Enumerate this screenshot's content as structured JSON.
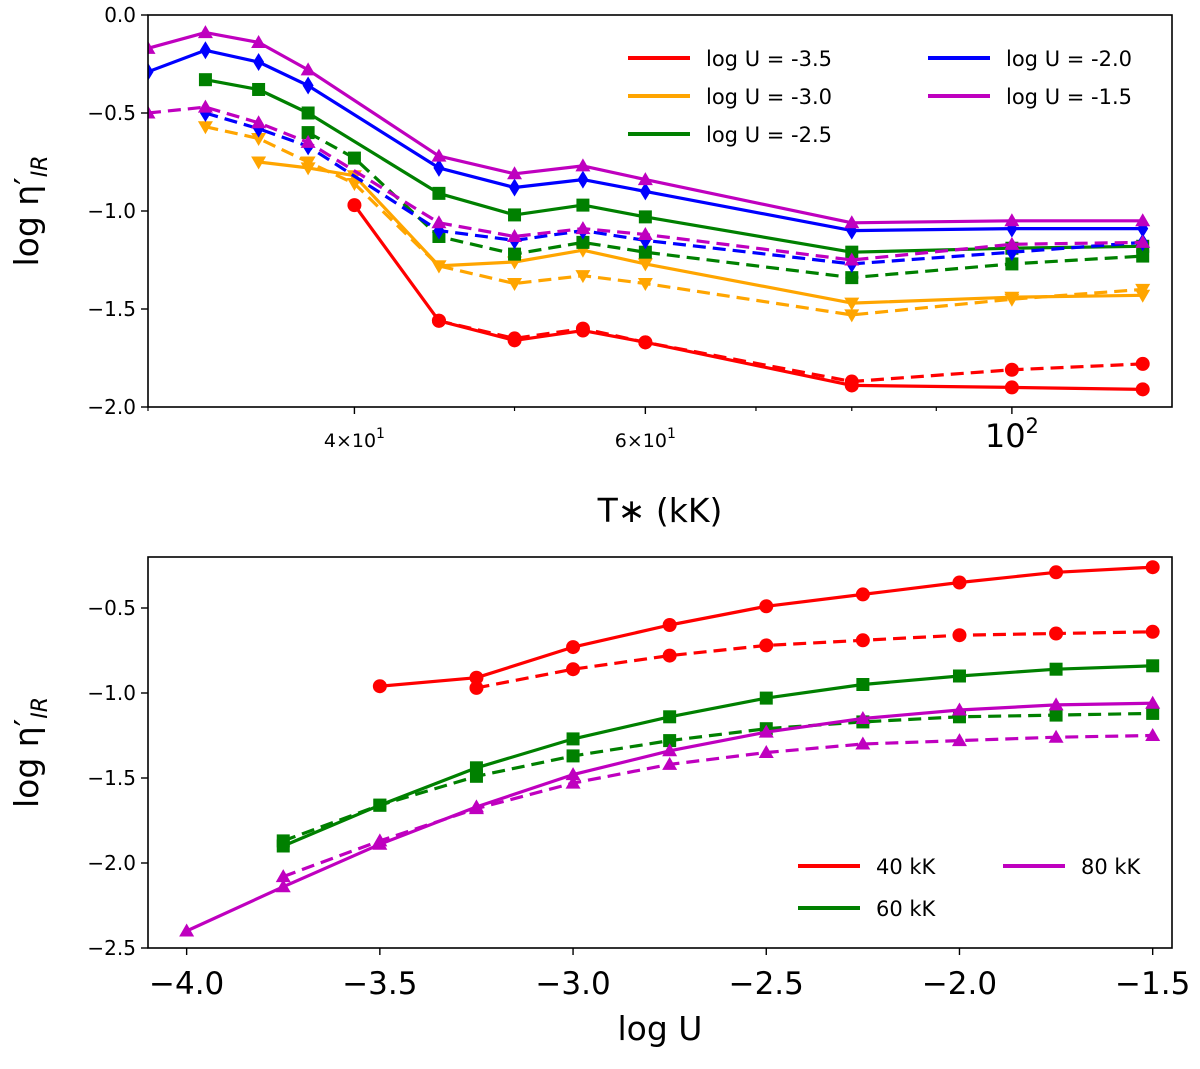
{
  "chart_data": [
    {
      "type": "line",
      "xscale": "log",
      "xlabel": "T∗ (kK)",
      "ylabel": "log η′IR",
      "ylabel_main": "log η′",
      "ylabel_sub": "IR",
      "xlim": [
        30,
        125
      ],
      "ylim": [
        -2.0,
        0.0
      ],
      "xticks": [
        {
          "value": 40,
          "label": "4×10",
          "exp": "1"
        },
        {
          "value": 60,
          "label": "6×10",
          "exp": "1"
        },
        {
          "value": 100,
          "label": "10",
          "exp": "2"
        }
      ],
      "yticks": [
        {
          "value": 0.0,
          "label": "0.0"
        },
        {
          "value": -0.5,
          "label": "−0.5"
        },
        {
          "value": -1.0,
          "label": "−1.0"
        },
        {
          "value": -1.5,
          "label": "−1.5"
        },
        {
          "value": -2.0,
          "label": "−2.0"
        }
      ],
      "legend": {
        "placement": "top-right",
        "entries": [
          {
            "label": "log U = -3.5",
            "color": "#ff0000"
          },
          {
            "label": "log U = -3.0",
            "color": "#ffa500"
          },
          {
            "label": "log U = -2.5",
            "color": "#008000"
          },
          {
            "label": "log U = -2.0",
            "color": "#0000ff"
          },
          {
            "label": "log U = -1.5",
            "color": "#bf00bf"
          }
        ]
      },
      "series": [
        {
          "name": "log U = -3.5 solid",
          "color": "#ff0000",
          "marker": "circle",
          "dashed": false,
          "x": [
            40,
            45,
            50,
            55,
            60,
            80,
            100,
            120
          ],
          "y": [
            -0.97,
            -1.56,
            -1.66,
            -1.61,
            -1.67,
            -1.89,
            -1.9,
            -1.91
          ]
        },
        {
          "name": "log U = -3.5 dashed",
          "color": "#ff0000",
          "marker": "circle",
          "dashed": true,
          "x": [
            45,
            50,
            55,
            60,
            80,
            100,
            120
          ],
          "y": [
            -1.56,
            -1.65,
            -1.6,
            -1.67,
            -1.87,
            -1.81,
            -1.78
          ]
        },
        {
          "name": "log U = -3.0 solid",
          "color": "#ffa500",
          "marker": "triangle-down",
          "dashed": false,
          "x": [
            35,
            37.5,
            40,
            45,
            50,
            55,
            60,
            80,
            100,
            120
          ],
          "y": [
            -0.75,
            -0.78,
            -0.82,
            -1.28,
            -1.26,
            -1.2,
            -1.27,
            -1.47,
            -1.44,
            -1.43
          ]
        },
        {
          "name": "log U = -3.0 dashed",
          "color": "#ffa500",
          "marker": "triangle-down",
          "dashed": true,
          "x": [
            32.5,
            35,
            37.5,
            40,
            45,
            50,
            55,
            60,
            80,
            100,
            120
          ],
          "y": [
            -0.57,
            -0.63,
            -0.75,
            -0.86,
            -1.28,
            -1.37,
            -1.33,
            -1.37,
            -1.53,
            -1.45,
            -1.4
          ]
        },
        {
          "name": "log U = -2.5 solid",
          "color": "#008000",
          "marker": "square",
          "dashed": false,
          "x": [
            32.5,
            35,
            37.5,
            45,
            50,
            55,
            60,
            80,
            100,
            120
          ],
          "y": [
            -0.33,
            -0.38,
            -0.5,
            -0.91,
            -1.02,
            -0.97,
            -1.03,
            -1.21,
            -1.19,
            -1.18
          ]
        },
        {
          "name": "log U = -2.5 dashed",
          "color": "#008000",
          "marker": "square",
          "dashed": true,
          "x": [
            37.5,
            40,
            45,
            50,
            55,
            60,
            80,
            100,
            120
          ],
          "y": [
            -0.6,
            -0.73,
            -1.13,
            -1.22,
            -1.16,
            -1.21,
            -1.34,
            -1.27,
            -1.23
          ]
        },
        {
          "name": "log U = -2.0 solid",
          "color": "#0000ff",
          "marker": "diamond",
          "dashed": false,
          "x": [
            30,
            32.5,
            35,
            37.5,
            45,
            50,
            55,
            60,
            80,
            100,
            120
          ],
          "y": [
            -0.29,
            -0.18,
            -0.24,
            -0.36,
            -0.78,
            -0.88,
            -0.84,
            -0.9,
            -1.1,
            -1.09,
            -1.09
          ]
        },
        {
          "name": "log U = -2.0 dashed",
          "color": "#0000ff",
          "marker": "diamond",
          "dashed": true,
          "x": [
            32.5,
            35,
            37.5,
            45,
            50,
            55,
            60,
            80,
            100,
            120
          ],
          "y": [
            -0.5,
            -0.58,
            -0.67,
            -1.1,
            -1.15,
            -1.1,
            -1.15,
            -1.27,
            -1.21,
            -1.16
          ]
        },
        {
          "name": "log U = -1.5 solid",
          "color": "#bf00bf",
          "marker": "triangle-up",
          "dashed": false,
          "x": [
            30,
            32.5,
            35,
            37.5,
            45,
            50,
            55,
            60,
            80,
            100,
            120
          ],
          "y": [
            -0.17,
            -0.09,
            -0.14,
            -0.28,
            -0.72,
            -0.81,
            -0.77,
            -0.84,
            -1.06,
            -1.05,
            -1.05
          ]
        },
        {
          "name": "log U = -1.5 dashed",
          "color": "#bf00bf",
          "marker": "triangle-up",
          "dashed": true,
          "x": [
            30,
            32.5,
            35,
            37.5,
            45,
            50,
            55,
            60,
            80,
            100,
            120
          ],
          "y": [
            -0.5,
            -0.47,
            -0.55,
            -0.65,
            -1.06,
            -1.13,
            -1.09,
            -1.12,
            -1.25,
            -1.17,
            -1.16
          ]
        }
      ]
    },
    {
      "type": "line",
      "xscale": "linear",
      "xlabel": "log U",
      "ylabel": "log η′IR",
      "ylabel_main": "log η′",
      "ylabel_sub": "IR",
      "xlim": [
        -4.1,
        -1.45
      ],
      "ylim": [
        -2.5,
        -0.2
      ],
      "xticks": [
        {
          "value": -4.0,
          "label": "−4.0"
        },
        {
          "value": -3.5,
          "label": "−3.5"
        },
        {
          "value": -3.0,
          "label": "−3.0"
        },
        {
          "value": -2.5,
          "label": "−2.5"
        },
        {
          "value": -2.0,
          "label": "−2.0"
        },
        {
          "value": -1.5,
          "label": "−1.5"
        }
      ],
      "yticks": [
        {
          "value": -0.5,
          "label": "−0.5"
        },
        {
          "value": -1.0,
          "label": "−1.0"
        },
        {
          "value": -1.5,
          "label": "−1.5"
        },
        {
          "value": -2.0,
          "label": "−2.0"
        },
        {
          "value": -2.5,
          "label": "−2.5"
        }
      ],
      "legend": {
        "placement": "lower-right",
        "entries": [
          {
            "label": "40 kK",
            "color": "#ff0000"
          },
          {
            "label": "60 kK",
            "color": "#008000"
          },
          {
            "label": "80 kK",
            "color": "#bf00bf"
          }
        ]
      },
      "series": [
        {
          "name": "40 kK solid",
          "color": "#ff0000",
          "marker": "circle",
          "dashed": false,
          "x": [
            -3.5,
            -3.25,
            -3.0,
            -2.75,
            -2.5,
            -2.25,
            -2.0,
            -1.75,
            -1.5
          ],
          "y": [
            -0.96,
            -0.91,
            -0.73,
            -0.6,
            -0.49,
            -0.42,
            -0.35,
            -0.29,
            -0.26
          ]
        },
        {
          "name": "40 kK dashed",
          "color": "#ff0000",
          "marker": "circle",
          "dashed": true,
          "x": [
            -3.25,
            -3.0,
            -2.75,
            -2.5,
            -2.25,
            -2.0,
            -1.75,
            -1.5
          ],
          "y": [
            -0.97,
            -0.86,
            -0.78,
            -0.72,
            -0.69,
            -0.66,
            -0.65,
            -0.64
          ]
        },
        {
          "name": "60 kK solid",
          "color": "#008000",
          "marker": "square",
          "dashed": false,
          "x": [
            -3.75,
            -3.5,
            -3.25,
            -3.0,
            -2.75,
            -2.5,
            -2.25,
            -2.0,
            -1.75,
            -1.5
          ],
          "y": [
            -1.9,
            -1.66,
            -1.44,
            -1.27,
            -1.14,
            -1.03,
            -0.95,
            -0.9,
            -0.86,
            -0.84
          ]
        },
        {
          "name": "60 kK dashed",
          "color": "#008000",
          "marker": "square",
          "dashed": true,
          "x": [
            -3.75,
            -3.5,
            -3.25,
            -3.0,
            -2.75,
            -2.5,
            -2.25,
            -2.0,
            -1.75,
            -1.5
          ],
          "y": [
            -1.87,
            -1.66,
            -1.49,
            -1.37,
            -1.28,
            -1.21,
            -1.17,
            -1.14,
            -1.13,
            -1.12
          ]
        },
        {
          "name": "80 kK solid",
          "color": "#bf00bf",
          "marker": "triangle-up",
          "dashed": false,
          "x": [
            -4.0,
            -3.75,
            -3.5,
            -3.25,
            -3.0,
            -2.75,
            -2.5,
            -2.25,
            -2.0,
            -1.75,
            -1.5
          ],
          "y": [
            -2.4,
            -2.14,
            -1.89,
            -1.67,
            -1.48,
            -1.34,
            -1.23,
            -1.15,
            -1.1,
            -1.07,
            -1.06
          ]
        },
        {
          "name": "80 kK dashed",
          "color": "#bf00bf",
          "marker": "triangle-up",
          "dashed": true,
          "x": [
            -3.75,
            -3.5,
            -3.25,
            -3.0,
            -2.75,
            -2.5,
            -2.25,
            -2.0,
            -1.75,
            -1.5
          ],
          "y": [
            -2.08,
            -1.87,
            -1.68,
            -1.53,
            -1.42,
            -1.35,
            -1.3,
            -1.28,
            -1.26,
            -1.25
          ]
        }
      ]
    }
  ]
}
